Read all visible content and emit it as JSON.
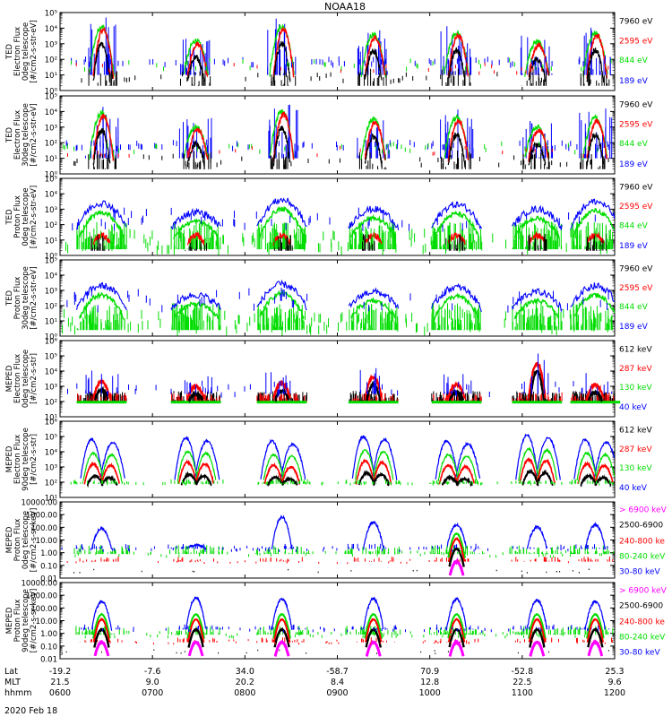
{
  "title": "NOAA18",
  "date_label": "2020 Feb 18",
  "xaxis": {
    "row_labels": [
      "Lat",
      "MLT",
      "hhmm"
    ],
    "ticks": [
      {
        "lat": "-19.2",
        "mlt": "21.5",
        "hhmm": "0600"
      },
      {
        "lat": "-7.6",
        "mlt": "9.0",
        "hhmm": "0700"
      },
      {
        "lat": "34.0",
        "mlt": "20.2",
        "hhmm": "0800"
      },
      {
        "lat": "-58.7",
        "mlt": "8.4",
        "hhmm": "0900"
      },
      {
        "lat": "70.9",
        "mlt": "12.8",
        "hhmm": "1000"
      },
      {
        "lat": "-52.8",
        "mlt": "22.5",
        "hhmm": "1100"
      },
      {
        "lat": "25.3",
        "mlt": "9.6",
        "hhmm": "1200"
      }
    ]
  },
  "colors": {
    "black": "#000000",
    "blue": "#0000ff",
    "red": "#ff0000",
    "green": "#00dd00",
    "magenta": "#ff00ff"
  },
  "chart_data": [
    {
      "type": "scatter",
      "ylabel": [
        "TED",
        "Electron Flux",
        "0deg telescope",
        "[#/cm2-s-str-eV]"
      ],
      "yscale": "log",
      "ylim": [
        1,
        100000
      ],
      "yticks": [
        "10⁰",
        "10¹",
        "10²",
        "10³",
        "10⁴",
        "10⁵"
      ],
      "legend": [
        {
          "label": "7960 eV",
          "color": "#000000"
        },
        {
          "label": "2595 eV",
          "color": "#ff0000"
        },
        {
          "label": "844 eV",
          "color": "#00dd00"
        },
        {
          "label": "189 eV",
          "color": "#0000ff"
        }
      ],
      "style": "ted",
      "pass_peaks_log": [
        4.3,
        3.4,
        4.3,
        3.8,
        3.9,
        3.3,
        3.9
      ],
      "x_range_hhmm": [
        "0600",
        "1200"
      ]
    },
    {
      "type": "scatter",
      "ylabel": [
        "TED",
        "Electron Flux",
        "30deg telescope",
        "[#/cm2-s-str-eV]"
      ],
      "yscale": "log",
      "ylim": [
        1,
        100000
      ],
      "yticks": [
        "10⁰",
        "10¹",
        "10²",
        "10³",
        "10⁴",
        "10⁵"
      ],
      "legend": [
        {
          "label": "7960 eV",
          "color": "#000000"
        },
        {
          "label": "2595 eV",
          "color": "#ff0000"
        },
        {
          "label": "844 eV",
          "color": "#00dd00"
        },
        {
          "label": "189 eV",
          "color": "#0000ff"
        }
      ],
      "style": "ted",
      "pass_peaks_log": [
        4.1,
        3.2,
        4.2,
        3.7,
        3.8,
        3.2,
        3.8
      ],
      "x_range_hhmm": [
        "0600",
        "1200"
      ]
    },
    {
      "type": "scatter",
      "ylabel": [
        "TED",
        "Proton Flux",
        "0deg telescope",
        "[#/cm2-s-str-eV]"
      ],
      "yscale": "log",
      "ylim": [
        1,
        100000
      ],
      "yticks": [
        "10⁰",
        "10¹",
        "10²",
        "10³",
        "10⁴",
        "10⁵"
      ],
      "legend": [
        {
          "label": "7960 eV",
          "color": "#000000"
        },
        {
          "label": "2595 eV",
          "color": "#ff0000"
        },
        {
          "label": "844 eV",
          "color": "#00dd00"
        },
        {
          "label": "189 eV",
          "color": "#0000ff"
        }
      ],
      "style": "tedp",
      "pass_peaks_log": [
        3.4,
        2.8,
        3.6,
        3.0,
        3.3,
        3.0,
        3.5
      ],
      "x_range_hhmm": [
        "0600",
        "1200"
      ]
    },
    {
      "type": "scatter",
      "ylabel": [
        "TED",
        "Proton Flux",
        "30deg telescope",
        "[#/cm2-s-str-eV]"
      ],
      "yscale": "log",
      "ylim": [
        1,
        100000
      ],
      "yticks": [
        "10⁰",
        "10¹",
        "10²",
        "10³",
        "10⁴",
        "10⁵"
      ],
      "legend": [
        {
          "label": "7960 eV",
          "color": "#000000"
        },
        {
          "label": "2595 eV",
          "color": "#ff0000"
        },
        {
          "label": "844 eV",
          "color": "#00dd00"
        },
        {
          "label": "189 eV",
          "color": "#0000ff"
        }
      ],
      "style": "tedp",
      "pass_peaks_log": [
        3.3,
        2.7,
        3.4,
        2.9,
        3.2,
        2.9,
        3.3
      ],
      "x_range_hhmm": [
        "0600",
        "1200"
      ]
    },
    {
      "type": "scatter",
      "ylabel": [
        "MEPED",
        "Electron Flux",
        "0deg telescope",
        "[#/cm2-s-str]"
      ],
      "yscale": "log",
      "ylim": [
        10,
        1000000
      ],
      "yticks": [
        "10¹",
        "10²",
        "10³",
        "10⁴",
        "10⁵",
        "10⁶"
      ],
      "legend": [
        {
          "label": "612 keV",
          "color": "#000000"
        },
        {
          "label": "287 keV",
          "color": "#ff0000"
        },
        {
          "label": "130 keV",
          "color": "#00dd00"
        },
        {
          "label": "40 keV",
          "color": "#0000ff"
        }
      ],
      "style": "mepe0",
      "pass_peaks_log": [
        3.3,
        3.0,
        3.2,
        3.6,
        3.1,
        4.5,
        3.1
      ],
      "x_range_hhmm": [
        "0600",
        "1200"
      ]
    },
    {
      "type": "scatter",
      "ylabel": [
        "MEPED",
        "Electron Flux",
        "90deg telescope",
        "[#/cm2-s-str]"
      ],
      "yscale": "log",
      "ylim": [
        10,
        1000000
      ],
      "yticks": [
        "10¹",
        "10²",
        "10³",
        "10⁴",
        "10⁵",
        "10⁶"
      ],
      "legend": [
        {
          "label": "612 keV",
          "color": "#000000"
        },
        {
          "label": "287 keV",
          "color": "#ff0000"
        },
        {
          "label": "130 keV",
          "color": "#00dd00"
        },
        {
          "label": "40 keV",
          "color": "#0000ff"
        }
      ],
      "style": "mepe90",
      "pass_peaks_log": [
        4.8,
        4.9,
        4.7,
        5.0,
        4.7,
        5.1,
        4.8
      ],
      "x_range_hhmm": [
        "0600",
        "1200"
      ]
    },
    {
      "type": "scatter",
      "ylabel": [
        "MEPED",
        "Proton Flux",
        "0deg telescope",
        "[#/cm2-s-sr-keV]"
      ],
      "yscale": "log",
      "ylim": [
        0.01,
        10000
      ],
      "yticks": [
        "0.01",
        "0.10",
        "1.00",
        "10.00",
        "100.00",
        "1000.00",
        "10000.00"
      ],
      "legend": [
        {
          "label": "> 6900 keV",
          "color": "#ff00ff"
        },
        {
          "label": "2500-6900",
          "color": "#000000"
        },
        {
          "label": "240-800 ke",
          "color": "#ff0000"
        },
        {
          "label": "80-240 keV",
          "color": "#00dd00"
        },
        {
          "label": "30-80 keV",
          "color": "#0000ff"
        }
      ],
      "style": "mepp0",
      "pass_peaks_log": [
        1.9,
        0.6,
        2.8,
        2.4,
        2.2,
        2.0,
        2.2
      ],
      "x_range_hhmm": [
        "0600",
        "1200"
      ]
    },
    {
      "type": "scatter",
      "ylabel": [
        "MEPED",
        "Proton Flux",
        "90deg telescope",
        "[#/cm2-s-sr-keV]"
      ],
      "yscale": "log",
      "ylim": [
        0.01,
        10000
      ],
      "yticks": [
        "0.01",
        "0.10",
        "1.00",
        "10.00",
        "100.00",
        "1000.00",
        "10000.00"
      ],
      "legend": [
        {
          "label": "> 6900 keV",
          "color": "#ff00ff"
        },
        {
          "label": "2500-6900",
          "color": "#000000"
        },
        {
          "label": "240-800 ke",
          "color": "#ff0000"
        },
        {
          "label": "80-240 keV",
          "color": "#00dd00"
        },
        {
          "label": "30-80 keV",
          "color": "#0000ff"
        }
      ],
      "style": "mepp90",
      "pass_peaks_log": [
        2.5,
        2.8,
        2.7,
        2.7,
        2.7,
        2.6,
        2.5
      ],
      "x_range_hhmm": [
        "0600",
        "1200"
      ]
    }
  ]
}
